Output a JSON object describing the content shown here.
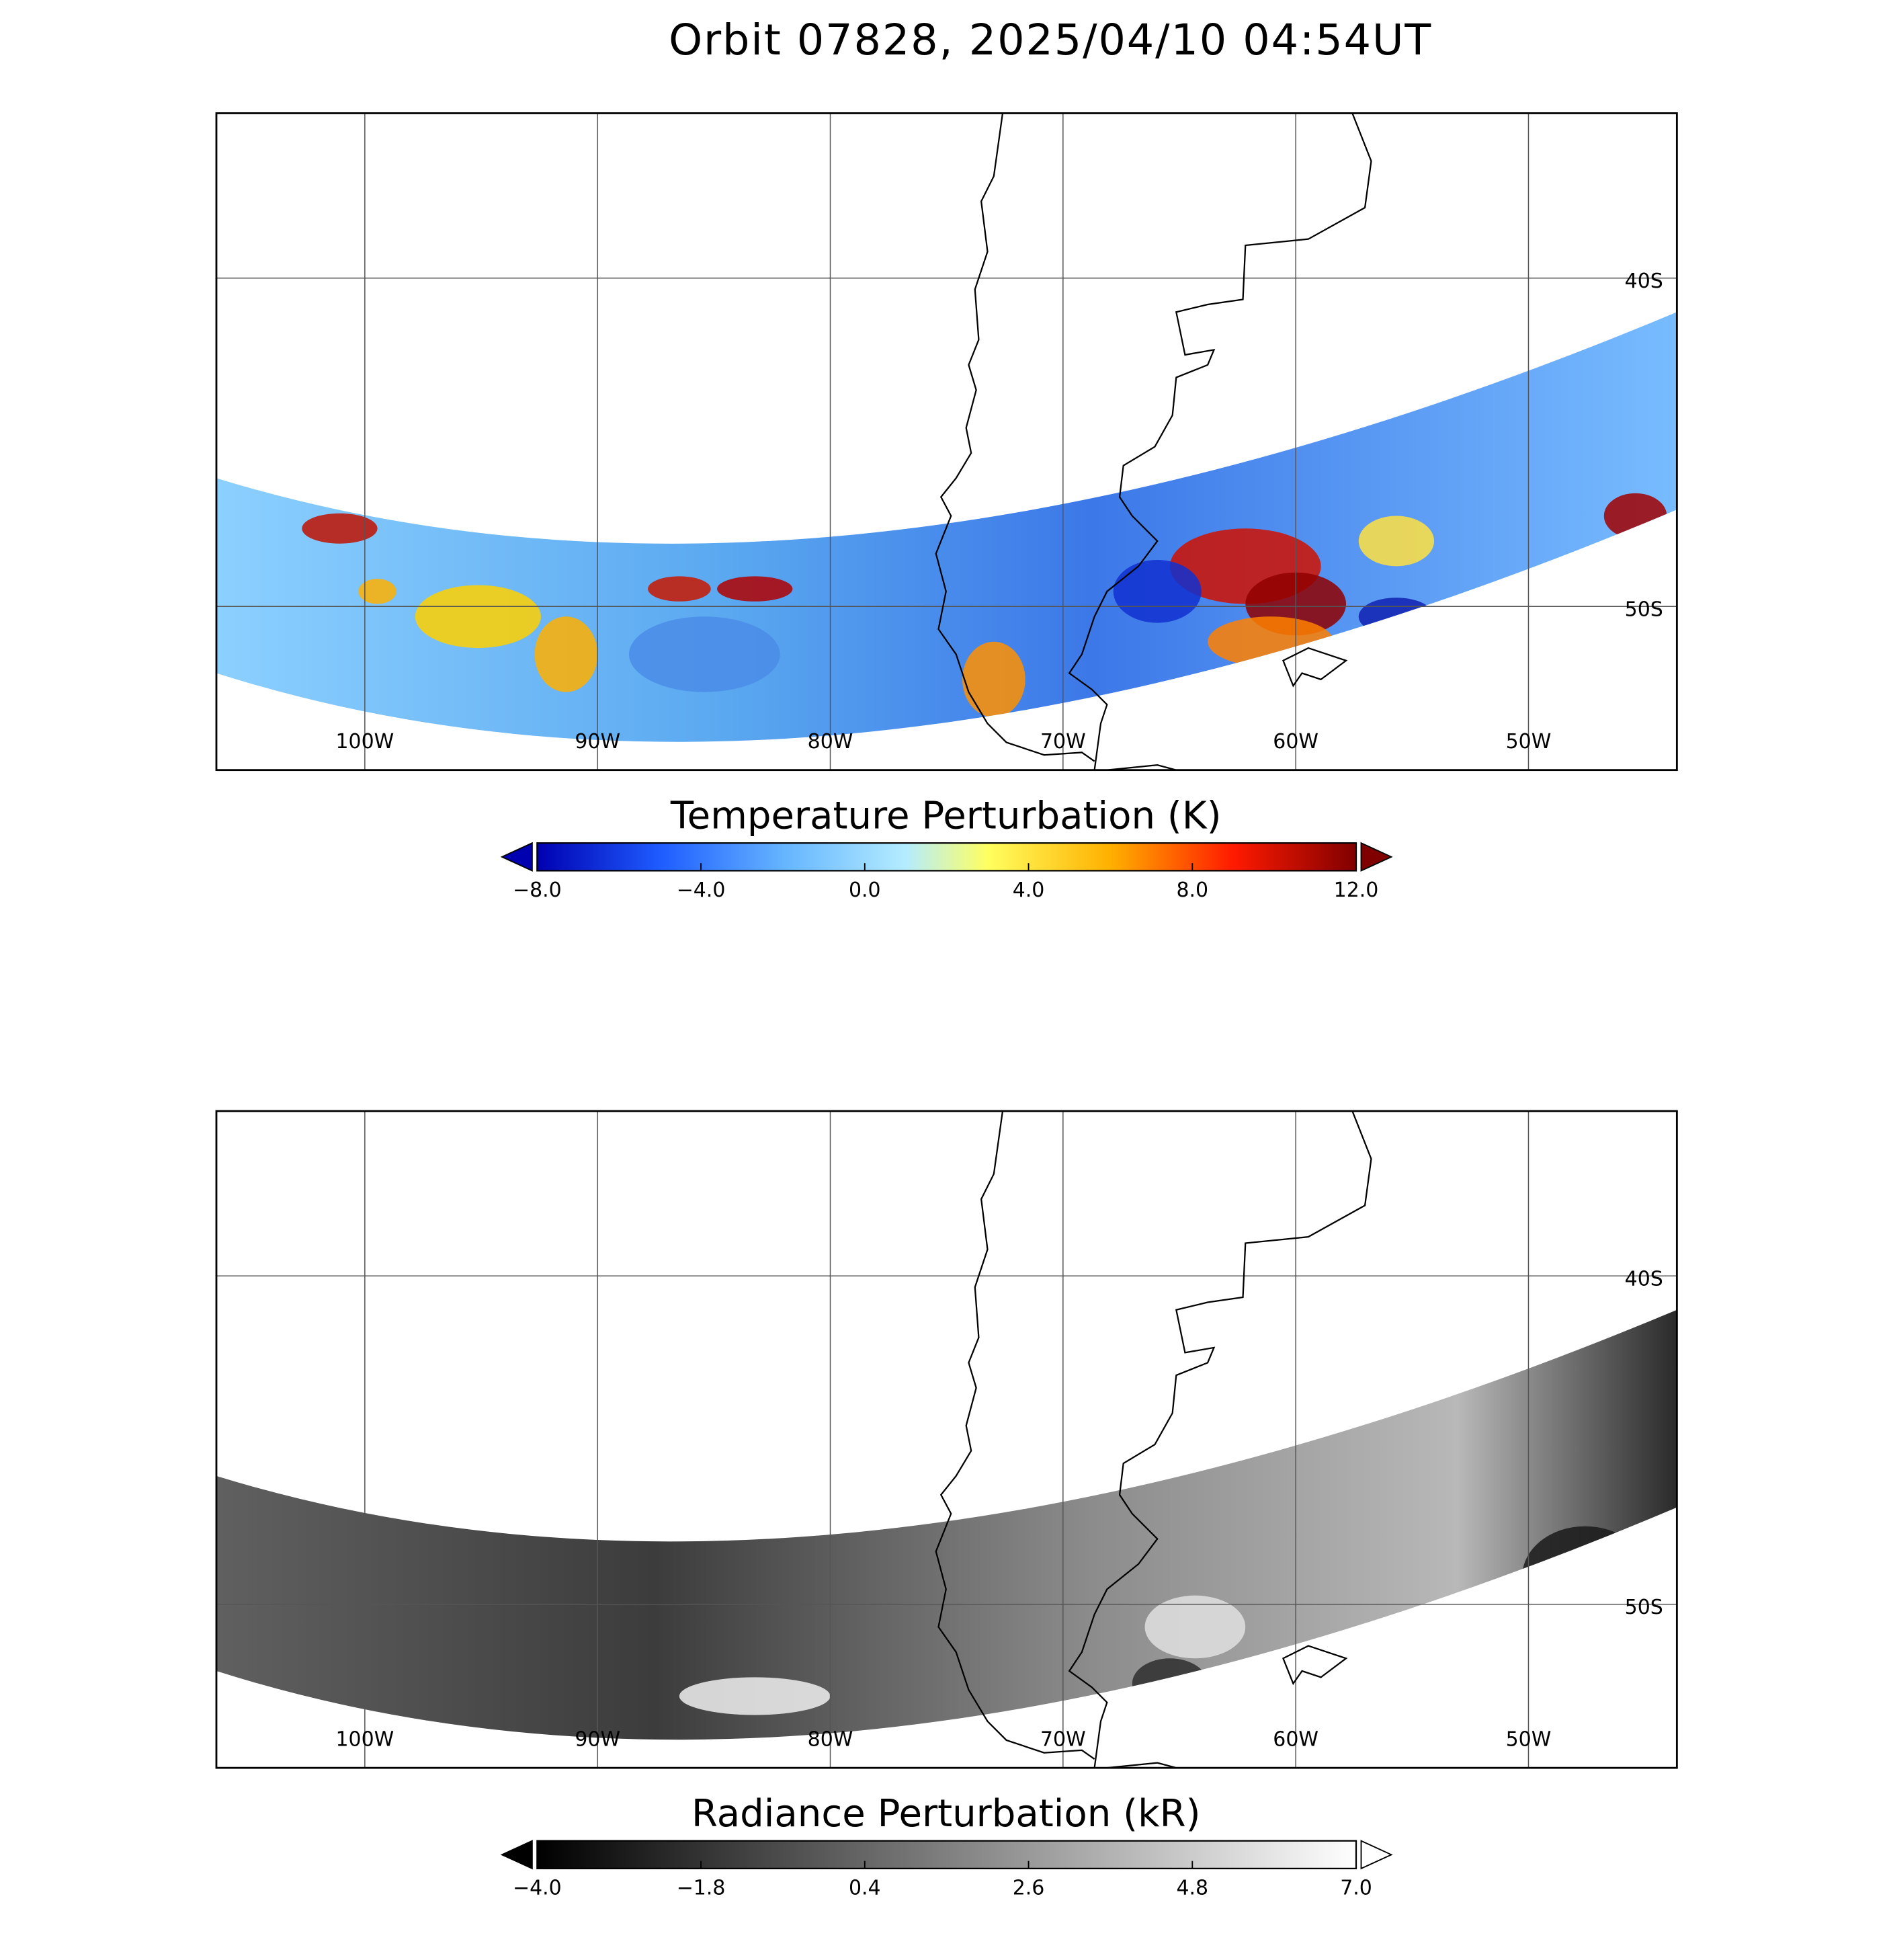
{
  "title": "Orbit 07828, 2025/04/10 04:54UT",
  "panels": [
    {
      "lon_ticks": [
        {
          "value": -100,
          "label": "100W"
        },
        {
          "value": -90,
          "label": "90W"
        },
        {
          "value": -80,
          "label": "80W"
        },
        {
          "value": -70,
          "label": "70W"
        },
        {
          "value": -60,
          "label": "60W"
        },
        {
          "value": -50,
          "label": "50W"
        }
      ],
      "lat_ticks": [
        {
          "value": -40,
          "label": "40S"
        },
        {
          "value": -50,
          "label": "50S"
        }
      ],
      "colorbar": {
        "title": "Temperature Perturbation (K)",
        "ticks": [
          {
            "value": -8,
            "label": "−8.0"
          },
          {
            "value": -4,
            "label": "−4.0"
          },
          {
            "value": 0,
            "label": "0.0"
          },
          {
            "value": 4,
            "label": "4.0"
          },
          {
            "value": 8,
            "label": "8.0"
          },
          {
            "value": 12,
            "label": "12.0"
          }
        ]
      }
    },
    {
      "lon_ticks": [
        {
          "value": -100,
          "label": "100W"
        },
        {
          "value": -90,
          "label": "90W"
        },
        {
          "value": -80,
          "label": "80W"
        },
        {
          "value": -70,
          "label": "70W"
        },
        {
          "value": -60,
          "label": "60W"
        },
        {
          "value": -50,
          "label": "50W"
        }
      ],
      "lat_ticks": [
        {
          "value": -40,
          "label": "40S"
        },
        {
          "value": -50,
          "label": "50S"
        }
      ],
      "colorbar": {
        "title": "Radiance Perturbation (kR)",
        "ticks": [
          {
            "value": -4,
            "label": "−4.0"
          },
          {
            "value": -1.8,
            "label": "−1.8"
          },
          {
            "value": 0.4,
            "label": "0.4"
          },
          {
            "value": 2.6,
            "label": "2.6"
          },
          {
            "value": 4.8,
            "label": "4.8"
          },
          {
            "value": 7,
            "label": "7.0"
          }
        ]
      }
    }
  ]
}
